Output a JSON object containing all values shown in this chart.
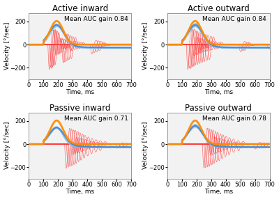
{
  "titles": [
    "Active inward",
    "Active outward",
    "Passive inward",
    "Passive outward"
  ],
  "auc_labels": [
    "Mean AUC gain 0.84",
    "Mean AUC gain 0.84",
    "Mean AUC gain 0.71",
    "Mean AUC gain 0.78"
  ],
  "xlabel": "Time, ms",
  "ylabel": "Velocity [°/sec]",
  "xlim": [
    0,
    700
  ],
  "ylim": [
    -300,
    275
  ],
  "yticks": [
    -200,
    0,
    200
  ],
  "xticks": [
    0,
    100,
    200,
    300,
    400,
    500,
    600,
    700
  ],
  "head_color": "#FF8C00",
  "eye_mean_color": "#4488CC",
  "saccade_color": "#FF3333",
  "eye_individual_color": "#88BBEE",
  "bg_color": "#F2F2F2",
  "title_fontsize": 8.5,
  "label_fontsize": 6.5,
  "tick_fontsize": 6,
  "annot_fontsize": 6.5
}
